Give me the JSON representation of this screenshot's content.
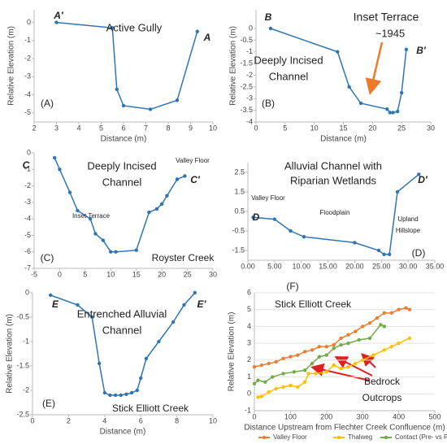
{
  "chart_data": [
    {
      "type": "line",
      "color": "#2e75b6",
      "x_label": "Distance (m)",
      "y_label": "Relative Elevation (m)",
      "x": [
        3,
        5.5,
        5.7,
        6.0,
        7.2,
        8.4,
        9.3
      ],
      "values": [
        0,
        -0.3,
        -3.7,
        -4.6,
        -4.8,
        -4.3,
        -0.5
      ],
      "xlim": [
        2,
        10
      ],
      "xticks": [
        2,
        3,
        4,
        5,
        6,
        7,
        8,
        9,
        10
      ],
      "ylim": [
        -5.5,
        0.7
      ],
      "yticks": [
        0,
        -1,
        -2,
        -3,
        -4,
        -5
      ],
      "annotations": [
        "Active Gully",
        "A′",
        "A",
        "(A)"
      ]
    },
    {
      "type": "line",
      "color": "#2e75b6",
      "x_label": "Distance (m)",
      "y_label": "Relative Elevation (m)",
      "x": [
        2.5,
        14,
        16,
        18,
        22.5,
        23,
        23.5,
        24.3,
        25,
        25.8
      ],
      "values": [
        0,
        -1,
        -2.5,
        -3.2,
        -3.45,
        -3.6,
        -3.6,
        -3.55,
        -2.75,
        -0.9
      ],
      "xlim": [
        0,
        30
      ],
      "xticks": [
        0,
        5,
        10,
        15,
        20,
        25,
        30
      ],
      "ylim": [
        -4,
        0.8
      ],
      "yticks": [
        0,
        -0.5,
        -1,
        -1.5,
        -2,
        -2.5,
        -3,
        -3.5,
        -4
      ],
      "annotations": [
        "B",
        "Inset Terrace",
        "~1945",
        "Deeply Incised",
        "Channel",
        "B′",
        "(B)"
      ]
    },
    {
      "type": "line",
      "color": "#2e75b6",
      "x": [
        -1,
        0,
        2,
        3.5,
        6,
        7,
        8.5,
        10,
        11,
        15,
        17.5,
        19,
        20,
        21,
        23,
        24.5
      ],
      "values": [
        -0.3,
        -1,
        -2.4,
        -3.5,
        -4,
        -4.9,
        -5.3,
        -6,
        -6,
        -5.9,
        -3.6,
        -3.4,
        -3.1,
        -2.6,
        -1.6,
        -1.4
      ],
      "xlim": [
        -5,
        30
      ],
      "xticks": [
        -5,
        0,
        5,
        10,
        15,
        20,
        25,
        30
      ],
      "ylim": [
        -7,
        0
      ],
      "yticks": [
        0,
        -1,
        -2,
        -3,
        -4,
        -5,
        -6,
        -7
      ],
      "annotations": [
        "Deeply Incised",
        "Channel",
        "Valley Floor",
        "Inset Terrace",
        "Royster Creek",
        "C",
        "C′",
        "(C)"
      ]
    },
    {
      "type": "line",
      "color": "#2e75b6",
      "x": [
        1,
        5,
        8,
        10.5,
        20,
        24.5,
        25.5,
        26.5,
        28,
        32
      ],
      "values": [
        0.2,
        0.1,
        -0.5,
        -0.8,
        -1.1,
        -1.5,
        -1.7,
        -1.7,
        1.5,
        2.4
      ],
      "xlim": [
        0,
        35
      ],
      "xticks": [
        {
          "value": 0,
          "label": "0.00"
        },
        {
          "value": 5,
          "label": "5.00"
        },
        {
          "value": 10,
          "label": "10.00"
        },
        {
          "value": 15,
          "label": "15.00"
        },
        {
          "value": 20,
          "label": "20.00"
        },
        {
          "value": 25,
          "label": "25.00"
        },
        {
          "value": 30,
          "label": "30.00"
        },
        {
          "value": 35,
          "label": "35.00"
        }
      ],
      "ylim": [
        -2,
        3
      ],
      "yticks": [
        2.5,
        1.5,
        0.5,
        -0.5,
        -1.5
      ],
      "annotations": [
        "Alluvial Channel with",
        "Riparian Wetlands",
        "Valley Floor",
        "Floodplain",
        "Upland",
        "Hillslope",
        "D",
        "D′",
        "(D)"
      ]
    },
    {
      "type": "line",
      "color": "#2e75b6",
      "x_label": "Distance (m)",
      "y_label": "Relative Elevation (m)",
      "x": [
        1,
        2.5,
        3.3,
        3.7,
        4,
        4.3,
        4.6,
        4.9,
        5.2,
        5.5,
        5.8,
        6,
        6.3,
        7,
        7.8,
        8.4,
        9
      ],
      "values": [
        -0.05,
        -0.25,
        -0.5,
        -1.45,
        -2.05,
        -2.1,
        -2.1,
        -2.1,
        -2.08,
        -2.05,
        -2,
        -1.75,
        -1.35,
        -1,
        -0.6,
        -0.25,
        0
      ],
      "xlim": [
        0,
        10
      ],
      "xticks": [
        0,
        2,
        4,
        6,
        8,
        10
      ],
      "ylim": [
        -2.5,
        0
      ],
      "yticks": [
        0,
        -0.5,
        -1,
        -1.5,
        -2,
        -2.5
      ],
      "annotations": [
        "Entrenched Alluvial",
        "Channel",
        "Stick Elliott Creek",
        "E",
        "E′",
        "(E)"
      ]
    },
    {
      "type": "multiline",
      "x_label": "Distance Upstream from Flechter Creek Confluence (m)",
      "y_label": "Relative Elevation (m)",
      "grid": true,
      "legend": "bottom",
      "series": [
        {
          "name": "Valley Floor",
          "color": "#ed7d31",
          "x": [
            0,
            20,
            40,
            60,
            80,
            100,
            120,
            140,
            160,
            180,
            200,
            220,
            240,
            260,
            280,
            300,
            320,
            340,
            360,
            380,
            400,
            420,
            430
          ],
          "values": [
            1.6,
            1.7,
            1.8,
            1.9,
            2.1,
            2.2,
            2.3,
            2.5,
            2.6,
            2.8,
            2.8,
            2.9,
            3.3,
            3.5,
            3.7,
            4.0,
            4.2,
            4.5,
            4.8,
            4.8,
            5.0,
            5.1,
            5.0
          ]
        },
        {
          "name": "Thalweg",
          "color": "#ffc000",
          "x": [
            10,
            20,
            40,
            60,
            80,
            100,
            120,
            140,
            150,
            170,
            200,
            220,
            240,
            260,
            280,
            300,
            330,
            360,
            380,
            400,
            430
          ],
          "values": [
            -0.2,
            -0.15,
            0.1,
            0.3,
            0.4,
            0.5,
            0.4,
            0.7,
            1.2,
            1.2,
            1.3,
            1.7,
            1.5,
            1.6,
            1.8,
            2.0,
            2.3,
            2.6,
            2.8,
            3.0,
            3.3
          ]
        },
        {
          "name": "Contact (Pre- vs Post)",
          "color": "#70ad47",
          "x": [
            0,
            10,
            30,
            50,
            80,
            110,
            140,
            160,
            180,
            200,
            220,
            240,
            260,
            290,
            320,
            350,
            360
          ],
          "values": [
            0.6,
            0.8,
            0.7,
            1.0,
            1.2,
            1.3,
            1.4,
            1.8,
            2.2,
            2.3,
            2.7,
            2.9,
            3.0,
            3.2,
            3.3,
            4.1,
            4.0
          ]
        }
      ],
      "xlim": [
        0,
        500
      ],
      "xticks": [
        0,
        100,
        200,
        300,
        400,
        500
      ],
      "ylim": [
        -1,
        6
      ],
      "yticks": [
        -1,
        0,
        1,
        2,
        3,
        4,
        5,
        6
      ],
      "annotations": [
        "(F)",
        "Stick Elliott Creek",
        "Bedrock",
        "Outcrops"
      ]
    }
  ]
}
